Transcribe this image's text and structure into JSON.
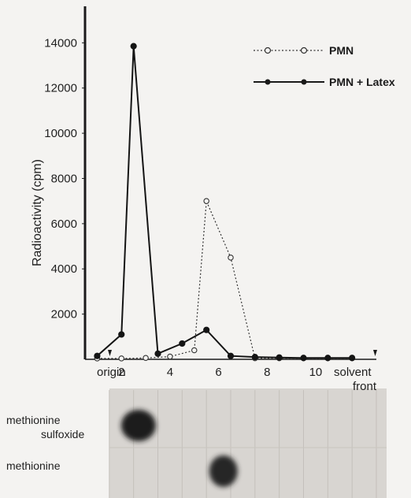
{
  "chart_data": {
    "type": "line",
    "ylabel": "Radioactivity (cpm)",
    "ylim": [
      0,
      14500
    ],
    "xlim": [
      0.5,
      12.5
    ],
    "yticks": [
      2000,
      4000,
      6000,
      8000,
      10000,
      12000,
      14000
    ],
    "xticks": [
      {
        "x": 2,
        "label": "2"
      },
      {
        "x": 4,
        "label": "4"
      },
      {
        "x": 6,
        "label": "6"
      },
      {
        "x": 8,
        "label": "8"
      },
      {
        "x": 10,
        "label": "10"
      }
    ],
    "origin_label": "origin",
    "front_label_1": "solvent",
    "front_label_2": "front",
    "grid": false,
    "legend_position": "top-right",
    "series": [
      {
        "name": "PMN",
        "style": "dotted-open-circle",
        "x": [
          1,
          2,
          3,
          4,
          5,
          5.5,
          6.5,
          7.5,
          8.5,
          9.5,
          10.5,
          11.5
        ],
        "values": [
          40,
          40,
          60,
          120,
          400,
          7000,
          4500,
          50,
          50,
          50,
          50,
          50
        ]
      },
      {
        "name": "PMN + Latex",
        "style": "solid-filled-circle",
        "x": [
          1,
          2,
          2.5,
          3.5,
          4.5,
          5.5,
          6.5,
          7.5,
          8.5,
          9.5,
          10.5,
          11.5
        ],
        "values": [
          150,
          1100,
          13850,
          250,
          700,
          1300,
          150,
          100,
          80,
          60,
          60,
          60
        ]
      }
    ]
  },
  "chromatogram": {
    "band_1_label_line1": "methionine",
    "band_1_label_line2": "sulfoxide",
    "band_2_label": "methionine",
    "band_1_x": 2.7,
    "band_2_x": 6.2
  }
}
